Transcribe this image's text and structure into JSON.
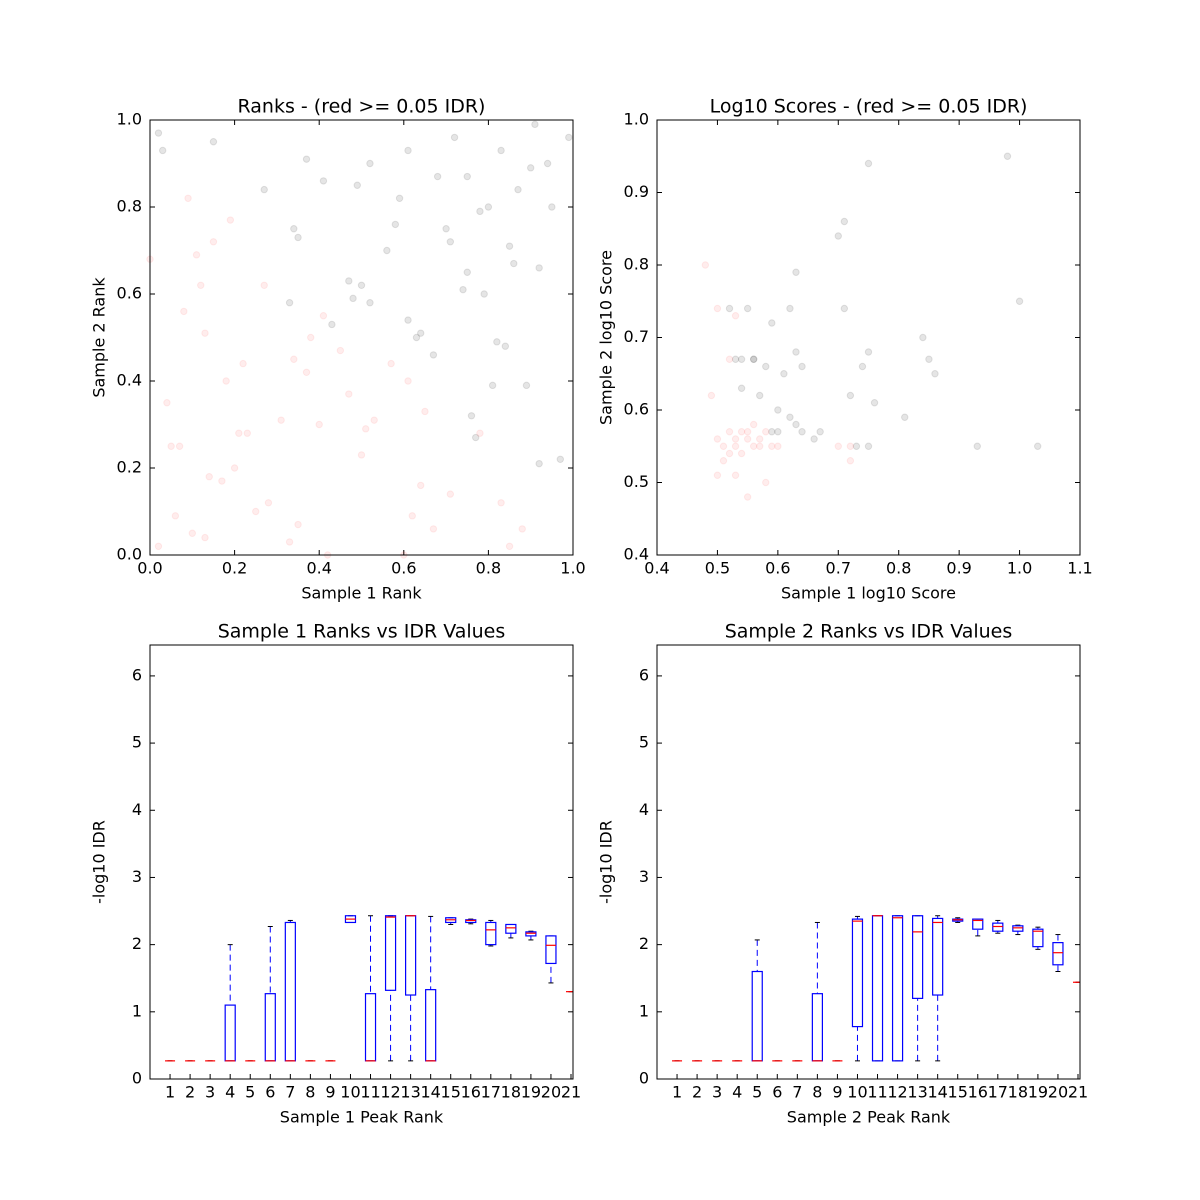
{
  "chart_data": [
    {
      "type": "scatter",
      "title": "Ranks - (red >= 0.05 IDR)",
      "xlabel": "Sample 1 Rank",
      "ylabel": "Sample 2 Rank",
      "xlim": [
        0,
        1
      ],
      "ylim": [
        0,
        1
      ],
      "xticks": [
        {
          "value": 0,
          "label": "0.0"
        },
        0.2,
        0.4,
        0.6,
        0.8,
        {
          "value": 1,
          "label": "1.0"
        }
      ],
      "yticks": [
        {
          "value": 0,
          "label": "0.0"
        },
        0.2,
        0.4,
        0.6,
        0.8,
        {
          "value": 1,
          "label": "1.0"
        }
      ],
      "series": [
        {
          "color": "#000000",
          "alpha": 0.1,
          "x": [
            0.02,
            0.03,
            0.15,
            0.27,
            0.34,
            0.35,
            0.37,
            0.41,
            0.43,
            0.47,
            0.48,
            0.49,
            0.52,
            0.52,
            0.56,
            0.58,
            0.59,
            0.61,
            0.61,
            0.64,
            0.63,
            0.67,
            0.68,
            0.7,
            0.71,
            0.72,
            0.74,
            0.75,
            0.75,
            0.76,
            0.77,
            0.78,
            0.79,
            0.8,
            0.81,
            0.82,
            0.83,
            0.84,
            0.85,
            0.86,
            0.87,
            0.89,
            0.9,
            0.91,
            0.92,
            0.92,
            0.94,
            0.95,
            0.97,
            0.99,
            0.5,
            0.33
          ],
          "y": [
            0.97,
            0.93,
            0.95,
            0.84,
            0.75,
            0.73,
            0.91,
            0.86,
            0.53,
            0.63,
            0.59,
            0.85,
            0.58,
            0.9,
            0.7,
            0.76,
            0.82,
            0.54,
            0.93,
            0.51,
            0.5,
            0.46,
            0.87,
            0.75,
            0.72,
            0.96,
            0.61,
            0.65,
            0.87,
            0.32,
            0.27,
            0.79,
            0.6,
            0.8,
            0.39,
            0.49,
            0.93,
            0.48,
            0.71,
            0.67,
            0.84,
            0.39,
            0.89,
            0.99,
            0.21,
            0.66,
            0.9,
            0.8,
            0.22,
            0.96,
            0.62,
            0.58
          ]
        },
        {
          "color": "#ff0000",
          "alpha": 0.07,
          "x": [
            0.0,
            0.02,
            0.04,
            0.05,
            0.06,
            0.07,
            0.08,
            0.09,
            0.1,
            0.11,
            0.12,
            0.13,
            0.13,
            0.14,
            0.15,
            0.17,
            0.18,
            0.19,
            0.2,
            0.21,
            0.22,
            0.23,
            0.25,
            0.27,
            0.28,
            0.31,
            0.33,
            0.34,
            0.35,
            0.37,
            0.38,
            0.4,
            0.41,
            0.42,
            0.45,
            0.47,
            0.5,
            0.51,
            0.53,
            0.6,
            0.61,
            0.62,
            0.64,
            0.65,
            0.67,
            0.71,
            0.78,
            0.83,
            0.85,
            0.88,
            0.57
          ],
          "y": [
            0.68,
            0.02,
            0.35,
            0.25,
            0.09,
            0.25,
            0.56,
            0.82,
            0.05,
            0.69,
            0.62,
            0.51,
            0.04,
            0.18,
            0.72,
            0.17,
            0.4,
            0.77,
            0.2,
            0.28,
            0.44,
            0.28,
            0.1,
            0.62,
            0.12,
            0.31,
            0.03,
            0.45,
            0.07,
            0.42,
            0.5,
            0.3,
            0.55,
            0.0,
            0.47,
            0.37,
            0.23,
            0.29,
            0.31,
            0.0,
            0.4,
            0.09,
            0.16,
            0.33,
            0.06,
            0.14,
            0.28,
            0.12,
            0.02,
            0.06,
            0.44
          ]
        }
      ]
    },
    {
      "type": "scatter",
      "title": "Log10 Scores - (red >= 0.05 IDR)",
      "xlabel": "Sample 1 log10 Score",
      "ylabel": "Sample 2 log10 Score",
      "xlim": [
        0.4,
        1.1
      ],
      "ylim": [
        0.4,
        1.0
      ],
      "xticks": [
        0.4,
        0.5,
        0.6,
        0.7,
        0.8,
        0.9,
        {
          "value": 1.0,
          "label": "1.0"
        },
        1.1
      ],
      "yticks": [
        0.4,
        0.5,
        0.6,
        0.7,
        0.8,
        0.9,
        {
          "value": 1.0,
          "label": "1.0"
        }
      ],
      "series": [
        {
          "color": "#000000",
          "alpha": 0.1,
          "x": [
            0.52,
            0.53,
            0.54,
            0.55,
            0.56,
            0.57,
            0.58,
            0.59,
            0.6,
            0.61,
            0.62,
            0.63,
            0.63,
            0.64,
            0.64,
            0.66,
            0.67,
            0.7,
            0.71,
            0.71,
            0.72,
            0.74,
            0.75,
            0.75,
            0.76,
            0.81,
            0.84,
            0.85,
            0.86,
            0.93,
            0.98,
            1.0,
            1.03,
            0.6,
            0.59,
            0.63,
            0.62,
            0.54,
            0.73,
            0.75,
            0.56
          ],
          "y": [
            0.74,
            0.67,
            0.67,
            0.74,
            0.67,
            0.62,
            0.66,
            0.72,
            0.6,
            0.65,
            0.74,
            0.79,
            0.68,
            0.66,
            0.57,
            0.56,
            0.57,
            0.84,
            0.86,
            0.74,
            0.62,
            0.66,
            0.68,
            0.94,
            0.61,
            0.59,
            0.7,
            0.67,
            0.65,
            0.55,
            0.95,
            0.75,
            0.55,
            0.57,
            0.57,
            0.58,
            0.59,
            0.63,
            0.55,
            0.55,
            0.67
          ]
        },
        {
          "color": "#ff0000",
          "alpha": 0.07,
          "x": [
            0.48,
            0.49,
            0.5,
            0.5,
            0.51,
            0.51,
            0.52,
            0.52,
            0.53,
            0.53,
            0.54,
            0.54,
            0.55,
            0.55,
            0.56,
            0.57,
            0.57,
            0.58,
            0.58,
            0.59,
            0.6,
            0.55,
            0.52,
            0.5,
            0.53,
            0.7,
            0.72,
            0.72,
            0.53,
            0.56
          ],
          "y": [
            0.8,
            0.62,
            0.51,
            0.56,
            0.53,
            0.55,
            0.57,
            0.54,
            0.56,
            0.55,
            0.57,
            0.54,
            0.57,
            0.56,
            0.58,
            0.56,
            0.55,
            0.57,
            0.5,
            0.55,
            0.55,
            0.48,
            0.67,
            0.74,
            0.73,
            0.55,
            0.53,
            0.55,
            0.51,
            0.55
          ]
        }
      ]
    },
    {
      "type": "box",
      "title": "Sample 1 Ranks vs IDR Values",
      "xlabel": "Sample 1 Peak Rank",
      "ylabel": "-log10 IDR",
      "ylim": [
        0,
        6.46
      ],
      "yticks": [
        0,
        1,
        2,
        3,
        4,
        5,
        6
      ],
      "color": "#0000ff",
      "median_color": "#ff0000",
      "categories": [
        "1",
        "2",
        "3",
        "4",
        "5",
        "6",
        "7",
        "8",
        "9",
        "10",
        "11",
        "12",
        "13",
        "14",
        "15",
        "16",
        "17",
        "18",
        "19",
        "20",
        "21"
      ],
      "boxes": [
        {
          "whislo": 0.27,
          "q1": 0.27,
          "med": 0.27,
          "q3": 0.27,
          "whishi": 0.27
        },
        {
          "whislo": 0.27,
          "q1": 0.27,
          "med": 0.27,
          "q3": 0.27,
          "whishi": 0.27
        },
        {
          "whislo": 0.27,
          "q1": 0.27,
          "med": 0.27,
          "q3": 0.27,
          "whishi": 0.27
        },
        {
          "whislo": 0.27,
          "q1": 0.27,
          "med": 0.27,
          "q3": 1.1,
          "whishi": 2.0
        },
        {
          "whislo": 0.27,
          "q1": 0.27,
          "med": 0.27,
          "q3": 0.27,
          "whishi": 0.27
        },
        {
          "whislo": 0.27,
          "q1": 0.27,
          "med": 0.27,
          "q3": 1.27,
          "whishi": 2.27
        },
        {
          "whislo": 0.27,
          "q1": 0.27,
          "med": 0.27,
          "q3": 2.33,
          "whishi": 2.36
        },
        {
          "whislo": 0.27,
          "q1": 0.27,
          "med": 0.27,
          "q3": 0.27,
          "whishi": 0.27
        },
        {
          "whislo": 0.27,
          "q1": 0.27,
          "med": 0.27,
          "q3": 0.27,
          "whishi": 0.27
        },
        {
          "whislo": 2.33,
          "q1": 2.33,
          "med": 2.38,
          "q3": 2.43,
          "whishi": 2.43
        },
        {
          "whislo": 0.27,
          "q1": 0.27,
          "med": 0.27,
          "q3": 1.27,
          "whishi": 2.43
        },
        {
          "whislo": 0.27,
          "q1": 1.32,
          "med": 2.41,
          "q3": 2.43,
          "whishi": 2.43
        },
        {
          "whislo": 0.27,
          "q1": 1.25,
          "med": 2.43,
          "q3": 2.43,
          "whishi": 2.43
        },
        {
          "whislo": 0.27,
          "q1": 0.27,
          "med": 0.27,
          "q3": 1.33,
          "whishi": 2.42
        },
        {
          "whislo": 2.3,
          "q1": 2.33,
          "med": 2.37,
          "q3": 2.4,
          "whishi": 2.4
        },
        {
          "whislo": 2.31,
          "q1": 2.33,
          "med": 2.36,
          "q3": 2.37,
          "whishi": 2.38
        },
        {
          "whislo": 1.98,
          "q1": 2.0,
          "med": 2.22,
          "q3": 2.33,
          "whishi": 2.36
        },
        {
          "whislo": 2.1,
          "q1": 2.17,
          "med": 2.25,
          "q3": 2.3,
          "whishi": 2.3
        },
        {
          "whislo": 2.07,
          "q1": 2.13,
          "med": 2.17,
          "q3": 2.19,
          "whishi": 2.2
        },
        {
          "whislo": 1.43,
          "q1": 1.72,
          "med": 1.99,
          "q3": 2.13,
          "whishi": 2.13
        },
        {
          "whislo": 1.3,
          "q1": 1.3,
          "med": 1.3,
          "q3": 1.3,
          "whishi": 1.3
        }
      ]
    },
    {
      "type": "box",
      "title": "Sample 2 Ranks vs IDR Values",
      "xlabel": "Sample 2 Peak Rank",
      "ylabel": "-log10 IDR",
      "ylim": [
        0,
        6.46
      ],
      "yticks": [
        0,
        1,
        2,
        3,
        4,
        5,
        6
      ],
      "color": "#0000ff",
      "median_color": "#ff0000",
      "categories": [
        "1",
        "2",
        "3",
        "4",
        "5",
        "6",
        "7",
        "8",
        "9",
        "10",
        "11",
        "12",
        "13",
        "14",
        "15",
        "16",
        "17",
        "18",
        "19",
        "20",
        "21"
      ],
      "boxes": [
        {
          "whislo": 0.27,
          "q1": 0.27,
          "med": 0.27,
          "q3": 0.27,
          "whishi": 0.27
        },
        {
          "whislo": 0.27,
          "q1": 0.27,
          "med": 0.27,
          "q3": 0.27,
          "whishi": 0.27
        },
        {
          "whislo": 0.27,
          "q1": 0.27,
          "med": 0.27,
          "q3": 0.27,
          "whishi": 0.27
        },
        {
          "whislo": 0.27,
          "q1": 0.27,
          "med": 0.27,
          "q3": 0.27,
          "whishi": 0.27
        },
        {
          "whislo": 0.27,
          "q1": 0.27,
          "med": 0.27,
          "q3": 1.6,
          "whishi": 2.07
        },
        {
          "whislo": 0.27,
          "q1": 0.27,
          "med": 0.27,
          "q3": 0.27,
          "whishi": 0.27
        },
        {
          "whislo": 0.27,
          "q1": 0.27,
          "med": 0.27,
          "q3": 0.27,
          "whishi": 0.27
        },
        {
          "whislo": 0.27,
          "q1": 0.27,
          "med": 0.27,
          "q3": 1.27,
          "whishi": 2.33
        },
        {
          "whislo": 0.27,
          "q1": 0.27,
          "med": 0.27,
          "q3": 0.27,
          "whishi": 0.27
        },
        {
          "whislo": 0.27,
          "q1": 0.78,
          "med": 2.35,
          "q3": 2.38,
          "whishi": 2.42
        },
        {
          "whislo": 0.27,
          "q1": 0.27,
          "med": 2.43,
          "q3": 2.43,
          "whishi": 2.43
        },
        {
          "whislo": 0.27,
          "q1": 0.27,
          "med": 2.4,
          "q3": 2.43,
          "whishi": 2.43
        },
        {
          "whislo": 0.27,
          "q1": 1.2,
          "med": 2.19,
          "q3": 2.43,
          "whishi": 2.43
        },
        {
          "whislo": 0.27,
          "q1": 1.25,
          "med": 2.33,
          "q3": 2.39,
          "whishi": 2.43
        },
        {
          "whislo": 2.33,
          "q1": 2.35,
          "med": 2.37,
          "q3": 2.38,
          "whishi": 2.4
        },
        {
          "whislo": 2.13,
          "q1": 2.23,
          "med": 2.36,
          "q3": 2.38,
          "whishi": 2.38
        },
        {
          "whislo": 2.17,
          "q1": 2.2,
          "med": 2.27,
          "q3": 2.32,
          "whishi": 2.36
        },
        {
          "whislo": 2.15,
          "q1": 2.2,
          "med": 2.25,
          "q3": 2.28,
          "whishi": 2.29
        },
        {
          "whislo": 1.93,
          "q1": 1.97,
          "med": 2.2,
          "q3": 2.23,
          "whishi": 2.26
        },
        {
          "whislo": 1.6,
          "q1": 1.7,
          "med": 1.88,
          "q3": 2.03,
          "whishi": 2.15
        },
        {
          "whislo": 1.44,
          "q1": 1.44,
          "med": 1.44,
          "q3": 1.44,
          "whishi": 1.44
        }
      ]
    }
  ]
}
